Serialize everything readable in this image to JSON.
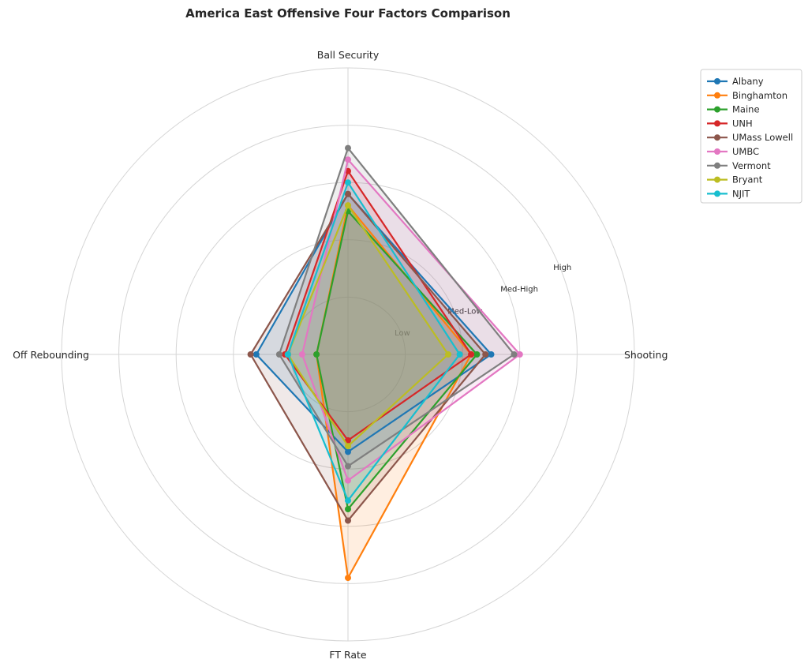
{
  "chart_data": {
    "type": "radar",
    "title": "America East Offensive Four Factors Comparison",
    "axes": [
      "Shooting",
      "Ball Security",
      "Off Rebounding",
      "FT Rate"
    ],
    "ring_labels": [
      "Low",
      "Med-Low",
      "Med-High",
      "High"
    ],
    "rlim": [
      0,
      5
    ],
    "grid": true,
    "legend_position": "top-right",
    "series": [
      {
        "name": "Albany",
        "color": "#1f77b4",
        "values": [
          2.5,
          2.8,
          1.6,
          1.7
        ]
      },
      {
        "name": "Binghamton",
        "color": "#ff7f0e",
        "values": [
          2.15,
          2.6,
          0.55,
          3.9
        ]
      },
      {
        "name": "Maine",
        "color": "#2ca02c",
        "values": [
          2.25,
          2.5,
          0.55,
          2.7
        ]
      },
      {
        "name": "UNH",
        "color": "#d62728",
        "values": [
          2.15,
          3.2,
          1.1,
          1.5
        ]
      },
      {
        "name": "UMass Lowell",
        "color": "#8c564b",
        "values": [
          2.4,
          2.8,
          1.7,
          2.9
        ]
      },
      {
        "name": "UMBC",
        "color": "#e377c2",
        "values": [
          3.0,
          3.4,
          0.8,
          2.2
        ]
      },
      {
        "name": "Vermont",
        "color": "#7f7f7f",
        "values": [
          2.9,
          3.6,
          1.2,
          1.95
        ]
      },
      {
        "name": "Bryant",
        "color": "#bcbd22",
        "values": [
          1.75,
          2.6,
          1.05,
          1.6
        ]
      },
      {
        "name": "NJIT",
        "color": "#17becf",
        "values": [
          1.95,
          3.0,
          1.05,
          2.55
        ]
      }
    ]
  }
}
